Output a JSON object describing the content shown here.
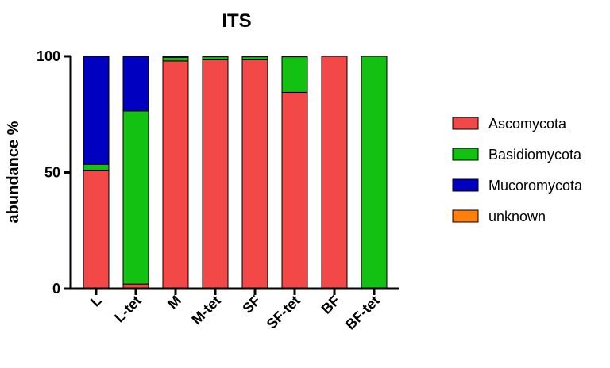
{
  "chart_data": {
    "type": "bar",
    "stacked": true,
    "title": "ITS",
    "xlabel": "",
    "ylabel": "abundance %",
    "ylim": [
      0,
      100
    ],
    "yticks": [
      "0",
      "50",
      "100"
    ],
    "categories": [
      "L",
      "L-tet",
      "M",
      "M-tet",
      "SF",
      "SF-tet",
      "BF",
      "BF-tet"
    ],
    "series": [
      {
        "name": "Ascomycota",
        "color": "#f24848",
        "values": [
          51,
          2,
          98,
          98.5,
          98.5,
          84.5,
          100,
          0
        ]
      },
      {
        "name": "Basidiomycota",
        "color": "#13c113",
        "values": [
          2.5,
          74.5,
          1.5,
          1.3,
          1.3,
          15.3,
          0,
          100
        ]
      },
      {
        "name": "Mucoromycota",
        "color": "#0000c0",
        "values": [
          46.5,
          23.5,
          0.5,
          0.2,
          0.2,
          0.2,
          0,
          0
        ]
      },
      {
        "name": "unknown",
        "color": "#ff7f0e",
        "values": [
          0,
          0,
          0,
          0,
          0,
          0,
          0,
          0
        ]
      }
    ],
    "legend_position": "right",
    "grid": false
  }
}
